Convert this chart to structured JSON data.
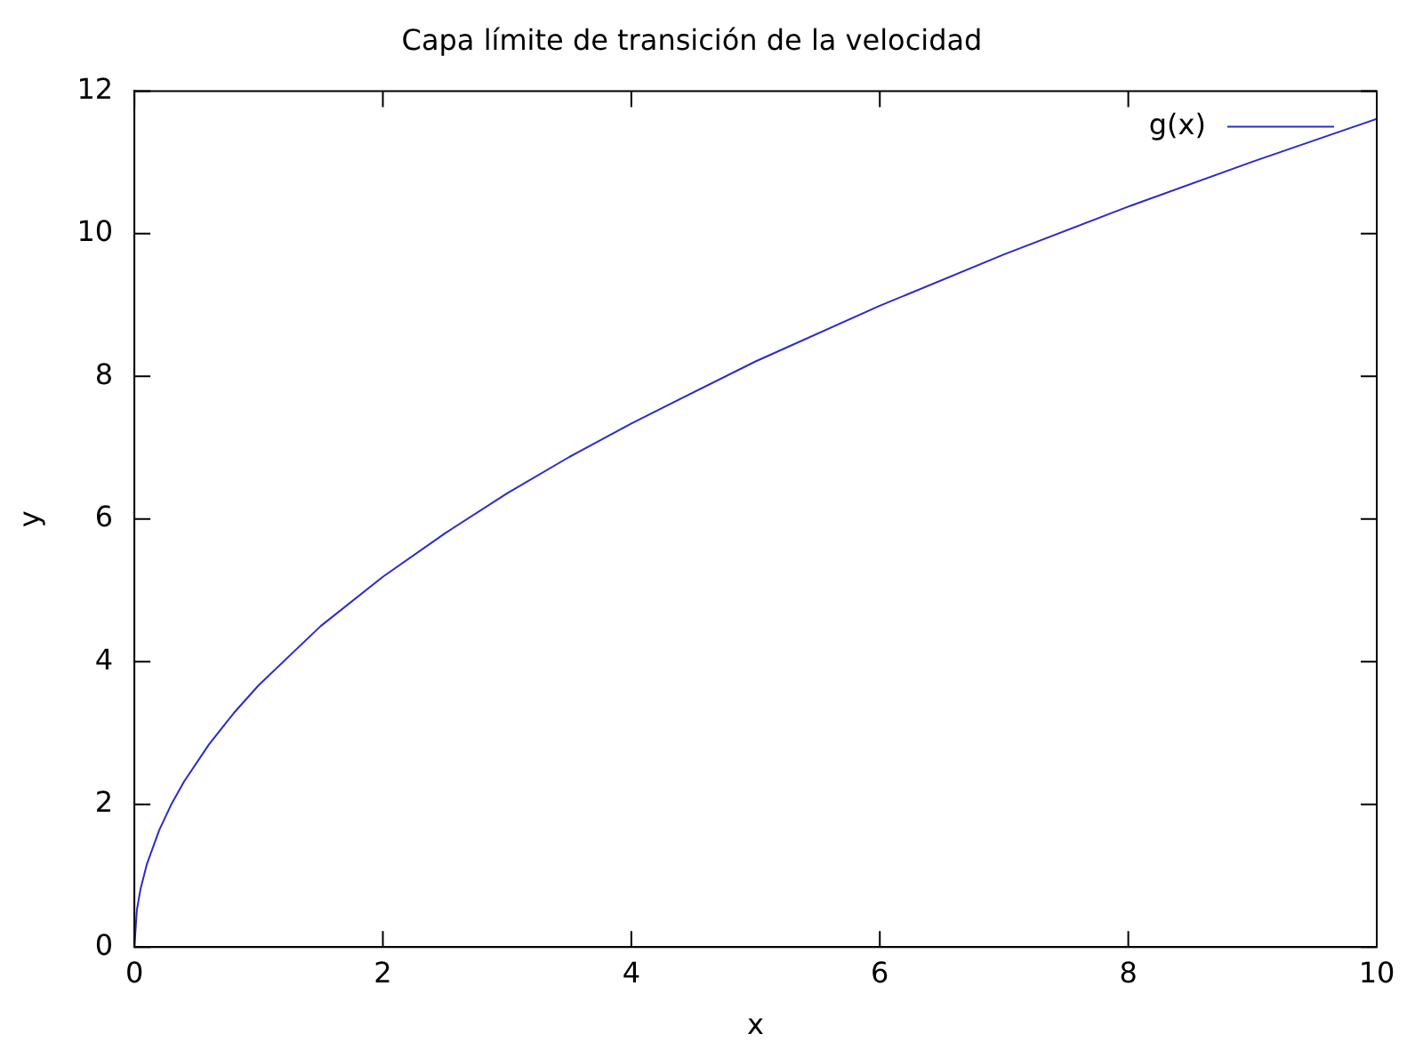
{
  "chart_data": {
    "type": "line",
    "title": "Capa límite de transición de la velocidad",
    "xlabel": "x",
    "ylabel": "y",
    "x": [
      0,
      0.02,
      0.05,
      0.1,
      0.2,
      0.3,
      0.4,
      0.6,
      0.8,
      1,
      1.5,
      2,
      2.5,
      3,
      3.5,
      4,
      5,
      6,
      7,
      8,
      9,
      10
    ],
    "series": [
      {
        "name": "g(x)",
        "color": "#2a2ad0",
        "values": [
          0,
          0.52,
          0.82,
          1.16,
          1.64,
          2.01,
          2.32,
          2.84,
          3.28,
          3.67,
          4.5,
          5.19,
          5.8,
          6.36,
          6.87,
          7.34,
          8.21,
          8.99,
          9.71,
          10.38,
          11.01,
          11.61
        ]
      }
    ],
    "xlim": [
      0,
      10
    ],
    "xticks": [
      0,
      2,
      4,
      6,
      8,
      10
    ],
    "ylim": [
      0,
      12
    ],
    "yticks": [
      0,
      2,
      4,
      6,
      8,
      10,
      12
    ],
    "legend": "top right",
    "marker": "none",
    "line_style": "solid"
  }
}
